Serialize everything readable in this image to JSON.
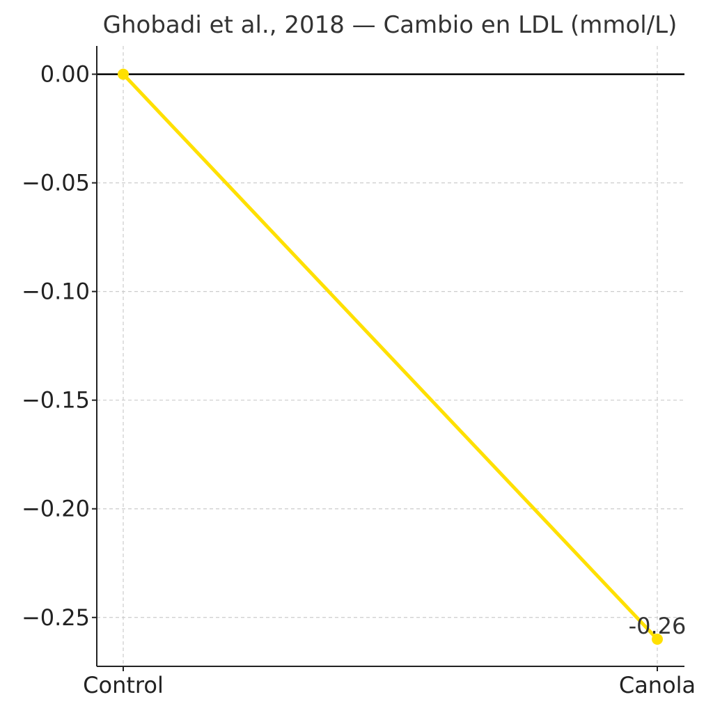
{
  "chart_data": {
    "type": "line",
    "title": "Ghobadi et al., 2018 — Cambio en LDL (mmol/L)",
    "categories": [
      "Control",
      "Canola"
    ],
    "series": [
      {
        "values": [
          0.0,
          -0.26
        ],
        "color": "#FFE000"
      }
    ],
    "data_labels": [
      {
        "category": "Canola",
        "text": "-0.26"
      }
    ],
    "yticks": [
      0.0,
      -0.05,
      -0.1,
      -0.15,
      -0.2,
      -0.25
    ],
    "ytick_labels": [
      "0.00",
      "−0.05",
      "−0.10",
      "−0.15",
      "−0.20",
      "−0.25"
    ],
    "ylim": [
      -0.2725,
      0.013
    ],
    "grid": true,
    "zero_line": true,
    "xlabel": "",
    "ylabel": ""
  }
}
